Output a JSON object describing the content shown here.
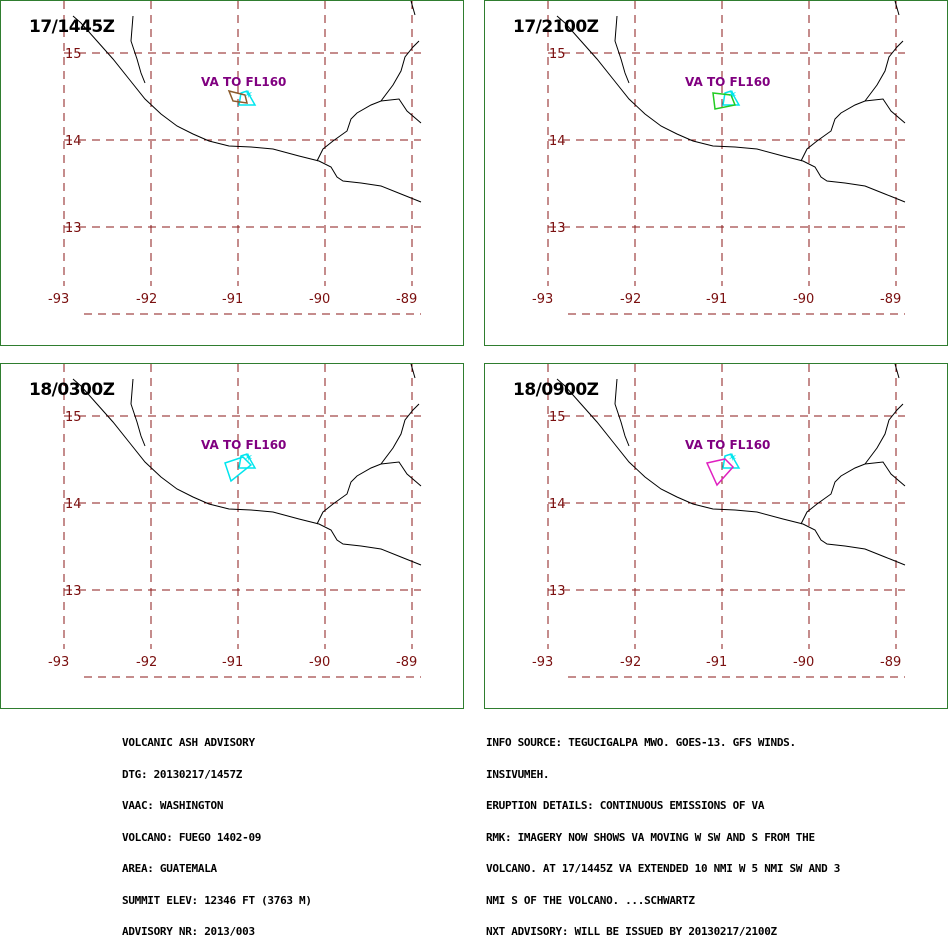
{
  "panels": [
    {
      "time": "17/1445Z",
      "va_label": "VA TO FL160",
      "poly_color": "#8b5a2b"
    },
    {
      "time": "17/2100Z",
      "va_label": "VA TO FL160",
      "poly_color": "#22cc22"
    },
    {
      "time": "18/0300Z",
      "va_label": "VA TO FL160",
      "poly_color": "#00e5ee"
    },
    {
      "time": "18/0900Z",
      "va_label": "VA TO FL160",
      "poly_color": "#e020c0"
    }
  ],
  "lat_labels": [
    "15",
    "14",
    "13"
  ],
  "lon_labels": [
    "-93",
    "-92",
    "-91",
    "-90",
    "-89"
  ],
  "cyan_color": "#00e5ee",
  "advisory_left": [
    "VOLCANIC ASH ADVISORY",
    "DTG: 20130217/1457Z",
    "VAAC: WASHINGTON",
    "VOLCANO: FUEGO 1402-09",
    "AREA: GUATEMALA",
    "SUMMIT ELEV: 12346 FT (3763 M)",
    "ADVISORY NR: 2013/003"
  ],
  "advisory_right": [
    "INFO SOURCE: TEGUCIGALPA MWO. GOES-13. GFS WINDS.",
    "INSIVUMEH.",
    "ERUPTION DETAILS: CONTINUOUS EMISSIONS OF VA",
    "RMK: IMAGERY NOW SHOWS VA MOVING W SW AND S FROM THE",
    "VOLCANO. AT 17/1445Z VA EXTENDED 10 NMI W 5 NMI SW AND 3",
    "NMI S OF THE VOLCANO. ...SCHWARTZ",
    "NXT ADVISORY: WILL BE ISSUED BY 20130217/2100Z"
  ]
}
